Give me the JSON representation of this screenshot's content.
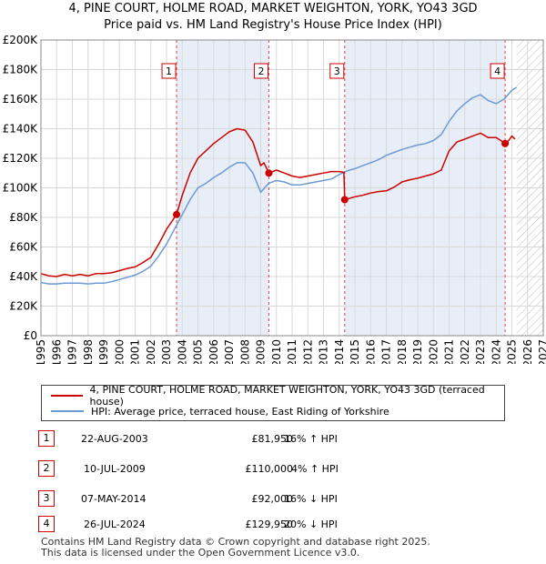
{
  "title_line1": "4, PINE COURT, HOLME ROAD, MARKET WEIGHTON, YORK, YO43 3GD",
  "title_line2": "Price paid vs. HM Land Registry's House Price Index (HPI)",
  "chart_data": {
    "type": "line",
    "title": "Price paid vs. HM Land Registry's House Price Index (HPI)",
    "xlabel": "",
    "ylabel": "",
    "xlim": [
      1995,
      2027
    ],
    "ylim": [
      0,
      200000
    ],
    "x_ticks": [
      1995,
      1996,
      1997,
      1998,
      1999,
      2000,
      2001,
      2002,
      2003,
      2004,
      2005,
      2006,
      2007,
      2008,
      2009,
      2010,
      2011,
      2012,
      2013,
      2014,
      2015,
      2016,
      2017,
      2018,
      2019,
      2020,
      2021,
      2022,
      2023,
      2024,
      2025,
      2026,
      2027
    ],
    "y_ticks": [
      {
        "value": 0,
        "label": "£0"
      },
      {
        "value": 20000,
        "label": "£20K"
      },
      {
        "value": 40000,
        "label": "£40K"
      },
      {
        "value": 60000,
        "label": "£60K"
      },
      {
        "value": 80000,
        "label": "£80K"
      },
      {
        "value": 100000,
        "label": "£100K"
      },
      {
        "value": 120000,
        "label": "£120K"
      },
      {
        "value": 140000,
        "label": "£140K"
      },
      {
        "value": 160000,
        "label": "£160K"
      },
      {
        "value": 180000,
        "label": "£180K"
      },
      {
        "value": 200000,
        "label": "£200K"
      }
    ],
    "grid": true,
    "shaded_regions": [
      {
        "from": 2003.64,
        "to": 2009.52,
        "color": "#e8eef8"
      },
      {
        "from": 2014.35,
        "to": 2024.57,
        "color": "#e8eef8"
      }
    ],
    "forecast_from": 2025.3,
    "series": [
      {
        "name": "4, PINE COURT, HOLME ROAD, MARKET WEIGHTON, YORK, YO43 3GD (terraced house)",
        "color": "#cc0000",
        "x": [
          1995,
          1995.5,
          1996,
          1996.5,
          1997,
          1997.5,
          1998,
          1998.5,
          1999,
          1999.5,
          2000,
          2000.5,
          2001,
          2001.5,
          2002,
          2002.5,
          2003,
          2003.64,
          2004,
          2004.5,
          2005,
          2005.5,
          2006,
          2006.5,
          2007,
          2007.5,
          2008,
          2008.5,
          2009,
          2009.2,
          2009.52,
          2010,
          2010.5,
          2011,
          2011.5,
          2012,
          2012.5,
          2013,
          2013.5,
          2014,
          2014.3,
          2014.35,
          2015,
          2015.5,
          2016,
          2016.5,
          2017,
          2017.5,
          2018,
          2018.5,
          2019,
          2019.5,
          2020,
          2020.5,
          2021,
          2021.5,
          2022,
          2022.5,
          2023,
          2023.5,
          2024,
          2024.3,
          2024.57,
          2024.8,
          2025,
          2025.2
        ],
        "y": [
          42000,
          40500,
          40000,
          41500,
          40500,
          41500,
          40500,
          42000,
          42000,
          42500,
          44000,
          45500,
          46500,
          49500,
          53000,
          62000,
          72000,
          81950,
          95000,
          110000,
          120000,
          125000,
          130000,
          134000,
          138000,
          140000,
          139000,
          131000,
          115000,
          117000,
          110000,
          112000,
          110000,
          108000,
          107000,
          108000,
          109000,
          110000,
          111000,
          111000,
          110500,
          92000,
          94000,
          95000,
          96500,
          97500,
          98000,
          100500,
          104000,
          105500,
          106500,
          108000,
          109500,
          112000,
          125000,
          131000,
          133000,
          135000,
          137000,
          134000,
          134000,
          132000,
          129950,
          132000,
          135000,
          133000
        ]
      },
      {
        "name": "HPI: Average price, terraced house, East Riding of Yorkshire",
        "color": "#6b9ad4",
        "x": [
          1995,
          1995.5,
          1996,
          1996.5,
          1997,
          1997.5,
          1998,
          1998.5,
          1999,
          1999.5,
          2000,
          2000.5,
          2001,
          2001.5,
          2002,
          2002.5,
          2003,
          2003.5,
          2004,
          2004.5,
          2005,
          2005.5,
          2006,
          2006.5,
          2007,
          2007.5,
          2008,
          2008.5,
          2009,
          2009.5,
          2010,
          2010.5,
          2011,
          2011.5,
          2012,
          2012.5,
          2013,
          2013.5,
          2014,
          2014.5,
          2015,
          2015.5,
          2016,
          2016.5,
          2017,
          2017.5,
          2018,
          2018.5,
          2019,
          2019.5,
          2020,
          2020.5,
          2021,
          2021.5,
          2022,
          2022.5,
          2023,
          2023.5,
          2024,
          2024.5,
          2025,
          2025.3
        ],
        "y": [
          36000,
          35000,
          35000,
          35500,
          35500,
          35500,
          35000,
          35500,
          35500,
          36500,
          38000,
          39500,
          41000,
          43500,
          47000,
          54000,
          62000,
          72000,
          82000,
          92000,
          100000,
          103000,
          107000,
          110000,
          114000,
          117000,
          117000,
          110000,
          97000,
          103000,
          105000,
          104000,
          102000,
          102000,
          103000,
          104000,
          105000,
          106000,
          109000,
          111500,
          113000,
          115000,
          117000,
          119000,
          122000,
          124000,
          126000,
          127500,
          129000,
          130000,
          132000,
          136000,
          145000,
          152000,
          157000,
          161000,
          163000,
          159000,
          157000,
          160000,
          166000,
          168000
        ]
      }
    ],
    "markers": [
      {
        "label": "1",
        "x": 2003.64,
        "y": 81950
      },
      {
        "label": "2",
        "x": 2009.52,
        "y": 110000
      },
      {
        "label": "3",
        "x": 2014.35,
        "y": 92000
      },
      {
        "label": "4",
        "x": 2024.57,
        "y": 129950
      }
    ]
  },
  "legend": {
    "property_label": "4, PINE COURT, HOLME ROAD, MARKET WEIGHTON, YORK, YO43 3GD (terraced house)",
    "hpi_label": "HPI: Average price, terraced house, East Riding of Yorkshire"
  },
  "transactions": [
    {
      "num": "1",
      "date": "22-AUG-2003",
      "price": "£81,950",
      "hpi": "16% ↑ HPI"
    },
    {
      "num": "2",
      "date": "10-JUL-2009",
      "price": "£110,000",
      "hpi": "4% ↑ HPI"
    },
    {
      "num": "3",
      "date": "07-MAY-2014",
      "price": "£92,000",
      "hpi": "16% ↓ HPI"
    },
    {
      "num": "4",
      "date": "26-JUL-2024",
      "price": "£129,950",
      "hpi": "20% ↓ HPI"
    }
  ],
  "footer_line1": "Contains HM Land Registry data © Crown copyright and database right 2025.",
  "footer_line2": "This data is licensed under the Open Government Licence v3.0."
}
